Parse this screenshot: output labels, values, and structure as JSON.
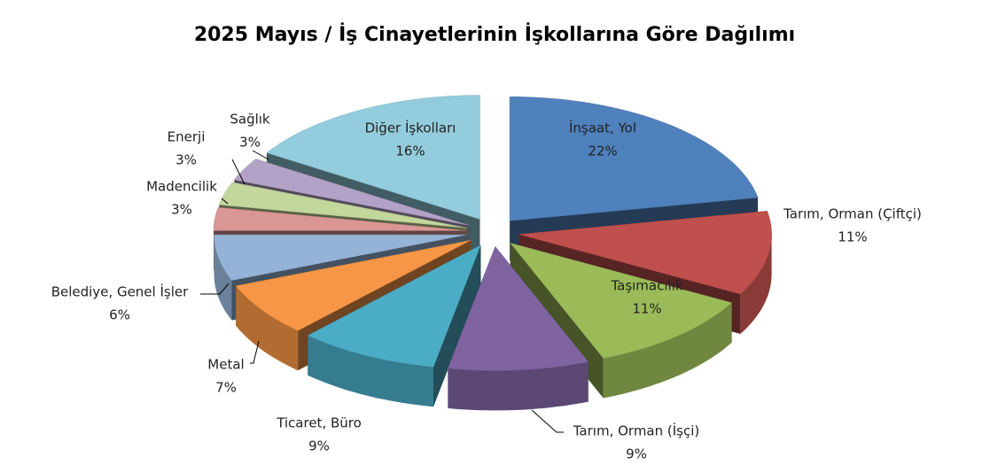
{
  "chart_data": {
    "type": "pie3d",
    "title": "2025 Mayıs / İş Cinayetlerinin İşkollarına Göre Dağılımı",
    "categories": [
      "İnşaat, Yol",
      "Tarım, Orman (Çiftçi)",
      "Taşımacılık",
      "Tarım, Orman (İşçi)",
      "Ticaret, Büro",
      "Metal",
      "Belediye, Genel İşler",
      "Madencilik",
      "Enerji",
      "Sağlık",
      "Diğer İşkolları"
    ],
    "values": [
      22,
      11,
      11,
      9,
      9,
      7,
      6,
      3,
      3,
      3,
      16
    ],
    "value_labels": [
      "22%",
      "11%",
      "11%",
      "9%",
      "9%",
      "7%",
      "6%",
      "3%",
      "3%",
      "3%",
      "16%"
    ],
    "colors": [
      "#4f81bd",
      "#c0504d",
      "#9bbb59",
      "#8064a2",
      "#4bacc6",
      "#f79646",
      "#95b3d7",
      "#d99694",
      "#c3d69b",
      "#b3a2c7",
      "#93cddd"
    ]
  }
}
